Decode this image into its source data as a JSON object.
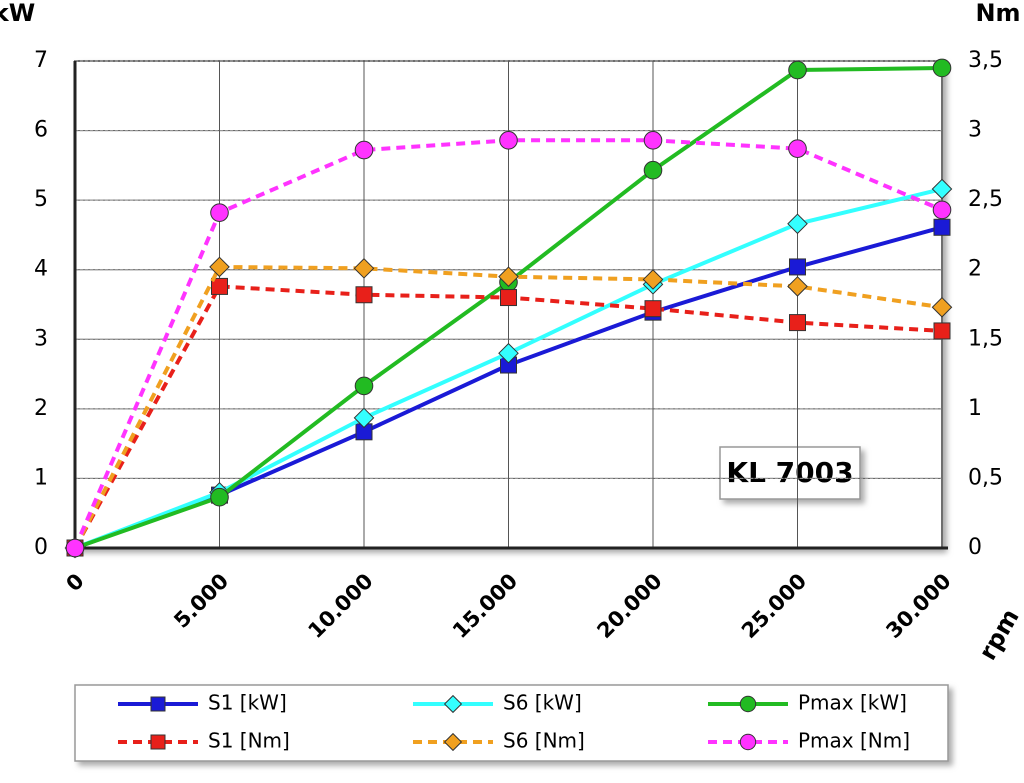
{
  "chart_data": {
    "type": "line",
    "annotation": "KL 7003",
    "xlabel": "rpm",
    "ylabel": "kW",
    "y2label": "Nm",
    "x": [
      0,
      5000,
      10000,
      15000,
      20000,
      25000,
      30000
    ],
    "xlim": [
      0,
      30000
    ],
    "xticks": [
      0,
      {
        "value": 5000,
        "label": "5.000"
      },
      {
        "value": 10000,
        "label": "10.000"
      },
      {
        "value": 15000,
        "label": "15.000"
      },
      {
        "value": 20000,
        "label": "20.000"
      },
      {
        "value": 25000,
        "label": "25.000"
      },
      {
        "value": 30000,
        "label": "30.000"
      }
    ],
    "ylim": [
      0,
      7
    ],
    "yticks": [
      0,
      1,
      2,
      3,
      4,
      5,
      6,
      7
    ],
    "y2lim": [
      0,
      3.5
    ],
    "y2ticks": [
      0,
      {
        "value": 0.5,
        "label": "0,5"
      },
      1,
      {
        "value": 1.5,
        "label": "1,5"
      },
      2,
      {
        "value": 2.5,
        "label": "2,5"
      },
      3,
      {
        "value": 3.5,
        "label": "3,5"
      }
    ],
    "grid": true,
    "series": [
      {
        "name": "S1 [kW]",
        "color": "#1a1ad6",
        "marker": "square",
        "line_style": "solid",
        "values": [
          0,
          0.76,
          1.67,
          2.63,
          3.39,
          4.04,
          4.61
        ]
      },
      {
        "name": "S6 [kW]",
        "color": "#33ffff",
        "marker": "diamond",
        "line_style": "solid",
        "values": [
          0,
          0.8,
          1.87,
          2.8,
          3.79,
          4.66,
          5.16
        ]
      },
      {
        "name": "Pmax [kW]",
        "color": "#22bb22",
        "marker": "circle",
        "line_style": "solid",
        "values": [
          0,
          0.73,
          2.33,
          3.82,
          5.43,
          6.87,
          6.9
        ]
      },
      {
        "name": "S1 [Nm]",
        "color": "#e8201a",
        "marker": "square",
        "line_style": "dashed",
        "axis": "y2",
        "values": [
          0,
          1.88,
          1.82,
          1.8,
          1.72,
          1.62,
          1.56
        ]
      },
      {
        "name": "S6 [Nm]",
        "color": "#f0a020",
        "marker": "diamond",
        "line_style": "dashed",
        "axis": "y2",
        "values": [
          0,
          2.02,
          2.01,
          1.95,
          1.93,
          1.88,
          1.73
        ]
      },
      {
        "name": "Pmax [Nm]",
        "color": "#ff33ff",
        "marker": "circle",
        "line_style": "dashed",
        "axis": "y2",
        "values": [
          0,
          2.41,
          2.86,
          2.93,
          2.93,
          2.87,
          2.43
        ]
      }
    ]
  }
}
